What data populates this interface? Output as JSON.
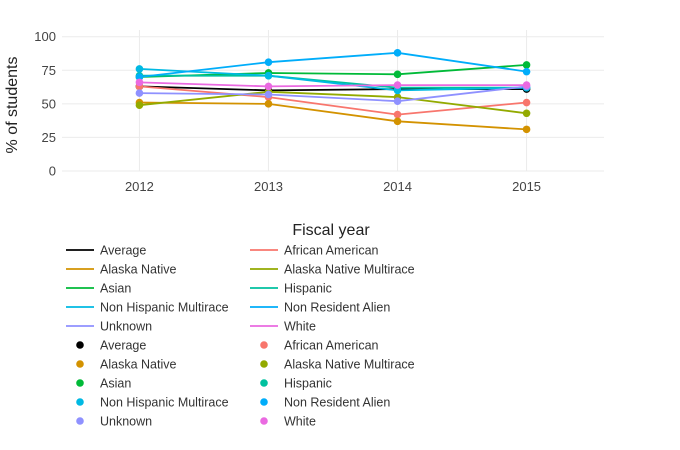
{
  "chart_data": {
    "type": "line",
    "xlabel": "Fiscal year",
    "ylabel": "% of students",
    "x": [
      2012,
      2013,
      2014,
      2015
    ],
    "xlim": [
      2011.4,
      2015.6
    ],
    "ylim": [
      0,
      105
    ],
    "yticks": [
      0,
      25,
      50,
      75,
      100
    ],
    "grid": true,
    "legend": "bottom",
    "series": [
      {
        "name": "Average",
        "color": "#000000",
        "values": [
          63,
          60,
          61,
          61
        ]
      },
      {
        "name": "African American",
        "color": "#f8766d",
        "values": [
          63,
          55,
          42,
          51
        ]
      },
      {
        "name": "Alaska Native",
        "color": "#d39200",
        "values": [
          51,
          50,
          37,
          31
        ]
      },
      {
        "name": "Alaska Native Multirace",
        "color": "#93aa00",
        "values": [
          49,
          59,
          55,
          43
        ]
      },
      {
        "name": "Asian",
        "color": "#00ba38",
        "values": [
          70,
          73,
          72,
          79
        ]
      },
      {
        "name": "Hispanic",
        "color": "#00c19f",
        "values": [
          71,
          71,
          62,
          62
        ]
      },
      {
        "name": "Non Hispanic Multirace",
        "color": "#00b9e3",
        "values": [
          76,
          71,
          60,
          62
        ]
      },
      {
        "name": "Non Resident Alien",
        "color": "#00adfa",
        "values": [
          70,
          81,
          88,
          74
        ]
      },
      {
        "name": "Unknown",
        "color": "#8f91ff",
        "values": [
          58,
          57,
          52,
          63
        ]
      },
      {
        "name": "White",
        "color": "#ea6ae1",
        "values": [
          66,
          63,
          64,
          64
        ]
      }
    ],
    "legend_lines": [
      "Average",
      "African American",
      "Alaska Native",
      "Alaska Native Multirace",
      "Asian",
      "Hispanic",
      "Non Hispanic Multirace",
      "Non Resident Alien",
      "Unknown",
      "White"
    ]
  }
}
